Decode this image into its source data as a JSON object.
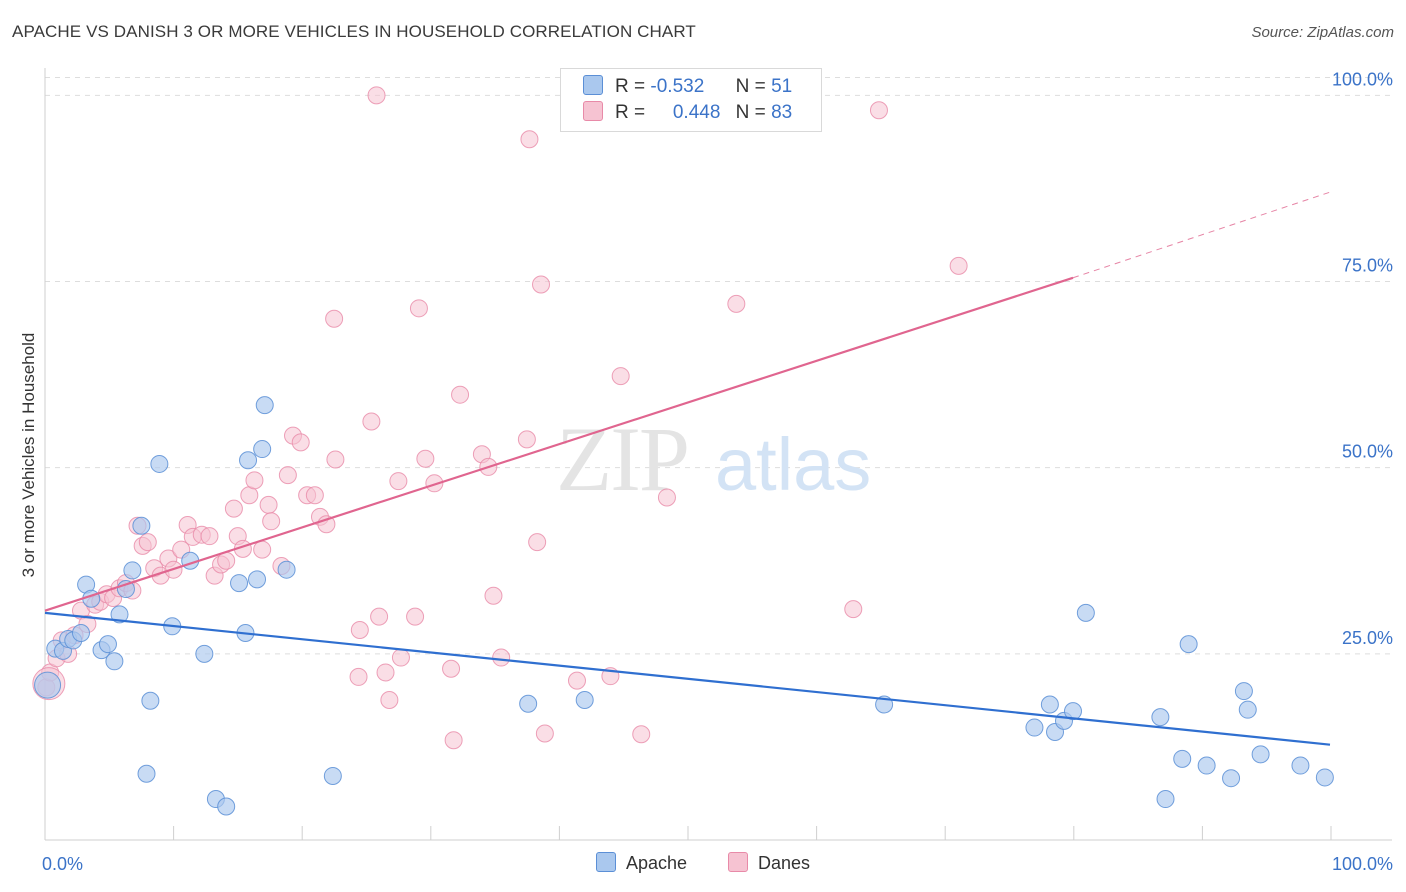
{
  "title": "APACHE VS DANISH 3 OR MORE VEHICLES IN HOUSEHOLD CORRELATION CHART",
  "source": "Source: ZipAtlas.com",
  "watermark": {
    "zip": "ZIP",
    "atlas": "atlas"
  },
  "colors": {
    "apache_fill": "#aac8ee",
    "apache_stroke": "#5b8fd6",
    "apache_line": "#2f6fd0",
    "danes_fill": "#f6c3d2",
    "danes_stroke": "#e88aa8",
    "danes_line": "#e0658f",
    "tick_label": "#3b73c8",
    "grid": "#dddddd"
  },
  "legend": {
    "rows": [
      {
        "r_label": "R =",
        "r_value": "-0.532",
        "n_label": "N =",
        "n_value": "51"
      },
      {
        "r_label": "R =",
        "r_value": "0.448",
        "n_label": "N =",
        "n_value": "83"
      }
    ]
  },
  "bottom_legend": {
    "apache": "Apache",
    "danes": "Danes"
  },
  "chart_data": {
    "type": "scatter",
    "ylabel": "3 or more Vehicles in Household",
    "xlabel": "",
    "xlim": [
      0,
      100
    ],
    "ylim": [
      0,
      103
    ],
    "x_tick_labels": [
      "0.0%",
      "100.0%"
    ],
    "y_ticks": [
      25,
      50,
      75,
      100
    ],
    "y_tick_labels": [
      "25.0%",
      "50.0%",
      "75.0%",
      "100.0%"
    ],
    "grid": true,
    "legend_position": "top-center",
    "series": [
      {
        "name": "Apache",
        "r": -0.532,
        "n": 51,
        "trend": {
          "x0": 0,
          "y0": 30.5,
          "x1": 100,
          "y1": 12.8
        },
        "points": [
          [
            0.2,
            20.8
          ],
          [
            0.8,
            25.7
          ],
          [
            1.4,
            25.4
          ],
          [
            1.8,
            27.0
          ],
          [
            2.2,
            26.8
          ],
          [
            2.8,
            27.8
          ],
          [
            3.2,
            34.3
          ],
          [
            3.6,
            32.4
          ],
          [
            4.4,
            25.5
          ],
          [
            4.9,
            26.3
          ],
          [
            5.4,
            24.0
          ],
          [
            5.8,
            30.3
          ],
          [
            6.3,
            33.7
          ],
          [
            6.8,
            36.2
          ],
          [
            7.5,
            42.2
          ],
          [
            7.9,
            8.9
          ],
          [
            8.2,
            18.7
          ],
          [
            8.9,
            50.5
          ],
          [
            9.9,
            28.7
          ],
          [
            11.3,
            37.5
          ],
          [
            12.4,
            25.0
          ],
          [
            13.3,
            5.5
          ],
          [
            14.1,
            4.5
          ],
          [
            15.1,
            34.5
          ],
          [
            15.6,
            27.8
          ],
          [
            15.8,
            51.0
          ],
          [
            16.5,
            35.0
          ],
          [
            16.9,
            52.5
          ],
          [
            17.1,
            58.4
          ],
          [
            18.8,
            36.3
          ],
          [
            22.4,
            8.6
          ],
          [
            37.6,
            18.3
          ],
          [
            42.0,
            18.8
          ],
          [
            65.3,
            18.2
          ],
          [
            77.0,
            15.1
          ],
          [
            78.2,
            18.2
          ],
          [
            78.6,
            14.5
          ],
          [
            79.3,
            16.0
          ],
          [
            80.0,
            17.3
          ],
          [
            81.0,
            30.5
          ],
          [
            86.8,
            16.5
          ],
          [
            87.2,
            5.5
          ],
          [
            88.5,
            10.9
          ],
          [
            89.0,
            26.3
          ],
          [
            90.4,
            10.0
          ],
          [
            92.3,
            8.3
          ],
          [
            93.3,
            20.0
          ],
          [
            93.6,
            17.5
          ],
          [
            94.6,
            11.5
          ],
          [
            97.7,
            10.0
          ],
          [
            99.6,
            8.4
          ]
        ]
      },
      {
        "name": "Danes",
        "r": 0.448,
        "n": 83,
        "trend": {
          "x0": 0,
          "y0": 30.8,
          "x1": 80,
          "y1": 75.5
        },
        "trend_dashed_end": {
          "x": 100,
          "y": 87.0
        },
        "points": [
          [
            0.1,
            20.5
          ],
          [
            0.4,
            22.5
          ],
          [
            0.9,
            24.4
          ],
          [
            1.3,
            26.8
          ],
          [
            1.8,
            25.0
          ],
          [
            2.3,
            27.5
          ],
          [
            2.8,
            30.8
          ],
          [
            3.3,
            29.0
          ],
          [
            3.9,
            31.6
          ],
          [
            4.3,
            32.0
          ],
          [
            4.8,
            33.0
          ],
          [
            5.3,
            32.5
          ],
          [
            5.8,
            33.8
          ],
          [
            6.3,
            34.5
          ],
          [
            6.8,
            33.5
          ],
          [
            7.2,
            42.2
          ],
          [
            7.6,
            39.5
          ],
          [
            8.0,
            40.0
          ],
          [
            8.5,
            36.5
          ],
          [
            9.0,
            35.5
          ],
          [
            9.6,
            37.8
          ],
          [
            10.0,
            36.3
          ],
          [
            10.6,
            39.0
          ],
          [
            11.1,
            42.3
          ],
          [
            11.5,
            40.7
          ],
          [
            12.2,
            41.0
          ],
          [
            12.8,
            40.8
          ],
          [
            13.2,
            35.5
          ],
          [
            13.7,
            37.0
          ],
          [
            14.1,
            37.5
          ],
          [
            14.7,
            44.5
          ],
          [
            15.0,
            40.8
          ],
          [
            15.4,
            39.1
          ],
          [
            15.9,
            46.3
          ],
          [
            16.3,
            48.3
          ],
          [
            16.9,
            39.0
          ],
          [
            17.4,
            45.0
          ],
          [
            17.6,
            42.8
          ],
          [
            18.4,
            36.8
          ],
          [
            18.9,
            49.0
          ],
          [
            19.3,
            54.3
          ],
          [
            19.9,
            53.4
          ],
          [
            20.4,
            46.3
          ],
          [
            21.0,
            46.3
          ],
          [
            21.4,
            43.4
          ],
          [
            21.9,
            42.4
          ],
          [
            22.5,
            70.0
          ],
          [
            22.6,
            51.1
          ],
          [
            24.4,
            21.9
          ],
          [
            24.5,
            28.2
          ],
          [
            25.4,
            56.2
          ],
          [
            25.8,
            100.0
          ],
          [
            26.0,
            30.0
          ],
          [
            26.5,
            22.5
          ],
          [
            26.8,
            18.8
          ],
          [
            27.5,
            48.2
          ],
          [
            27.7,
            24.5
          ],
          [
            28.8,
            30.0
          ],
          [
            29.1,
            71.4
          ],
          [
            29.6,
            51.2
          ],
          [
            30.3,
            47.9
          ],
          [
            31.6,
            23.0
          ],
          [
            31.8,
            13.4
          ],
          [
            32.3,
            59.8
          ],
          [
            34.0,
            51.8
          ],
          [
            34.5,
            50.1
          ],
          [
            34.9,
            32.8
          ],
          [
            35.5,
            24.5
          ],
          [
            37.5,
            53.8
          ],
          [
            37.7,
            94.1
          ],
          [
            38.3,
            40.0
          ],
          [
            38.6,
            74.6
          ],
          [
            38.9,
            14.3
          ],
          [
            41.4,
            21.4
          ],
          [
            44.0,
            22.0
          ],
          [
            44.8,
            62.3
          ],
          [
            46.4,
            14.2
          ],
          [
            48.4,
            46.0
          ],
          [
            53.8,
            72.0
          ],
          [
            62.9,
            31.0
          ],
          [
            64.9,
            98.0
          ],
          [
            71.1,
            77.1
          ],
          [
            0.3,
            21.0
          ]
        ]
      }
    ]
  }
}
